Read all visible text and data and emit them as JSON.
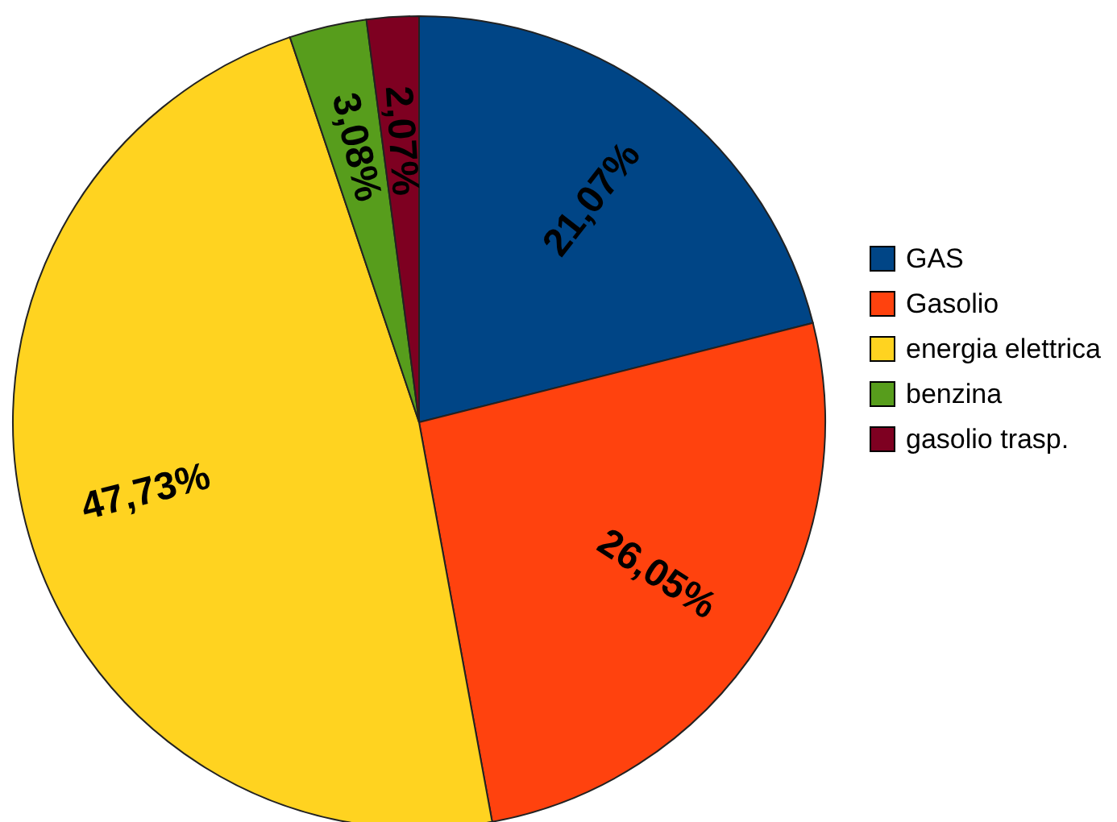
{
  "chart_data": {
    "type": "pie",
    "categories": [
      "GAS",
      "Gasolio",
      "energia elettrica",
      "benzina",
      "gasolio trasp."
    ],
    "values": [
      21.07,
      26.05,
      47.73,
      3.08,
      2.07
    ],
    "colors": [
      "#004586",
      "#ff420e",
      "#ffd320",
      "#579d1c",
      "#7e0021"
    ],
    "value_labels": [
      "21,07%",
      "26,05%",
      "47,73%",
      "3,08%",
      "2,07%"
    ],
    "legend": "right"
  }
}
